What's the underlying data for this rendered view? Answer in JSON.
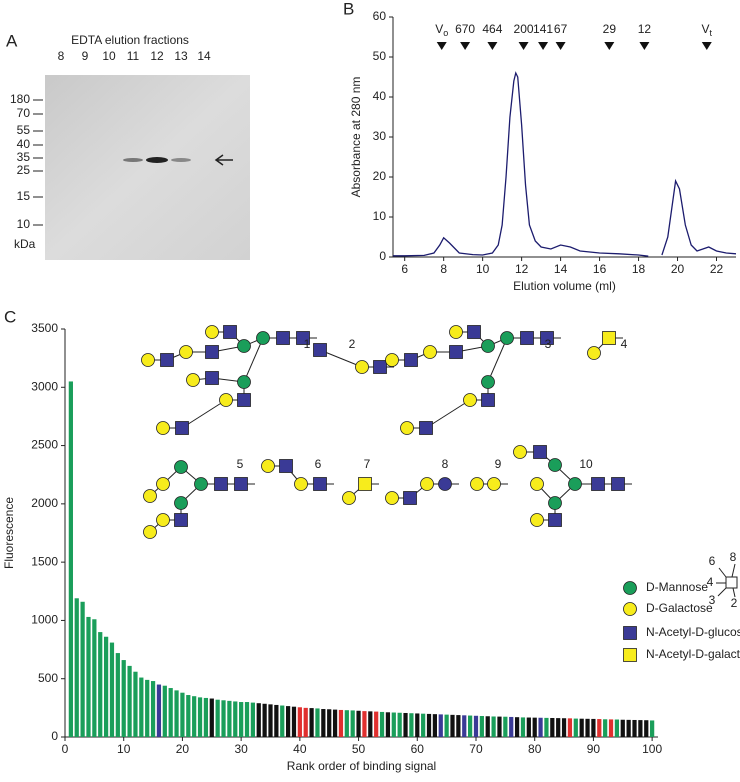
{
  "panel_labels": [
    "A",
    "B",
    "C"
  ],
  "gel": {
    "title": "EDTA elution fractions",
    "lanes": [
      "8",
      "9",
      "10",
      "11",
      "12",
      "13",
      "14"
    ],
    "markers": [
      180,
      70,
      55,
      40,
      35,
      25,
      15,
      10
    ],
    "unit": "kDa"
  },
  "chart_data": [
    {
      "type": "line",
      "x_label": "Elution volume (ml)",
      "y_label": "Absorbance at 280 nm",
      "xlim": [
        5.4,
        23
      ],
      "xticks": [
        6,
        8,
        10,
        12,
        14,
        16,
        18,
        20,
        22
      ],
      "ylim": [
        0,
        60
      ],
      "yticks": [
        0,
        10,
        20,
        30,
        40,
        50,
        60
      ],
      "markers": [
        {
          "label": "V",
          "subscript": "o",
          "x": 7.9
        },
        {
          "label": "670",
          "x": 9.1
        },
        {
          "label": "464",
          "x": 10.5
        },
        {
          "label": "200",
          "x": 12.1
        },
        {
          "label": "141",
          "x": 13.1
        },
        {
          "label": "67",
          "x": 14.0
        },
        {
          "label": "29",
          "x": 16.5
        },
        {
          "label": "12",
          "x": 18.3
        },
        {
          "label": "V",
          "subscript": "t",
          "x": 21.5
        }
      ],
      "series": [
        {
          "color": "#1c1c6e",
          "x": [
            5.4,
            6,
            7,
            7.5,
            7.8,
            8,
            8.3,
            8.8,
            9.5,
            10,
            10.5,
            10.8,
            11,
            11.2,
            11.4,
            11.6,
            11.7,
            11.8,
            12,
            12.2,
            12.4,
            12.7,
            13,
            13.5,
            14,
            14.5,
            15,
            16,
            17,
            18,
            18.5,
            18.8,
            19.2,
            19.5,
            19.7,
            19.9,
            20.1,
            20.4,
            20.7,
            21,
            21.3,
            21.6,
            22,
            22.5,
            23
          ],
          "values": [
            0.3,
            0.3,
            0.4,
            1,
            3,
            4.8,
            3.5,
            1,
            0.6,
            0.5,
            1,
            3,
            8,
            20,
            35,
            44,
            46,
            45,
            33,
            18,
            8,
            4,
            2.5,
            2,
            3,
            2.5,
            1.5,
            1,
            0.8,
            0.5,
            0.2,
            null,
            0.5,
            5,
            12,
            19,
            17,
            8,
            3,
            1.5,
            2,
            2.5,
            1.5,
            1,
            0.8
          ]
        }
      ]
    },
    {
      "type": "bar",
      "x_label": "Rank order of binding signal",
      "y_label": "Fluorescence",
      "xlim": [
        0,
        101
      ],
      "xticks": [
        0,
        10,
        20,
        30,
        40,
        50,
        60,
        70,
        80,
        90,
        100
      ],
      "ylim": [
        0,
        3500
      ],
      "yticks": [
        0,
        500,
        1000,
        1500,
        2000,
        2500,
        3000,
        3500
      ],
      "x": [
        1,
        2,
        3,
        4,
        5,
        6,
        7,
        8,
        9,
        10,
        11,
        12,
        13,
        14,
        15,
        16,
        17,
        18,
        19,
        20,
        21,
        22,
        23,
        24,
        25,
        26,
        27,
        28,
        29,
        30,
        31,
        32,
        33,
        34,
        35,
        36,
        37,
        38,
        39,
        40,
        41,
        42,
        43,
        44,
        45,
        46,
        47,
        48,
        49,
        50,
        51,
        52,
        53,
        54,
        55,
        56,
        57,
        58,
        59,
        60,
        61,
        62,
        63,
        64,
        65,
        66,
        67,
        68,
        69,
        70,
        71,
        72,
        73,
        74,
        75,
        76,
        77,
        78,
        79,
        80,
        81,
        82,
        83,
        84,
        85,
        86,
        87,
        88,
        89,
        90,
        91,
        92,
        93,
        94,
        95,
        96,
        97,
        98,
        99,
        100
      ],
      "values": [
        3050,
        1190,
        1160,
        1030,
        1010,
        900,
        860,
        810,
        720,
        660,
        610,
        560,
        510,
        490,
        480,
        450,
        440,
        420,
        400,
        380,
        360,
        350,
        340,
        335,
        330,
        320,
        315,
        310,
        305,
        300,
        300,
        295,
        290,
        285,
        280,
        275,
        270,
        265,
        260,
        255,
        250,
        248,
        245,
        240,
        238,
        235,
        232,
        230,
        228,
        225,
        222,
        220,
        218,
        215,
        212,
        210,
        208,
        206,
        204,
        202,
        200,
        198,
        196,
        194,
        192,
        190,
        188,
        186,
        184,
        182,
        180,
        178,
        176,
        175,
        174,
        172,
        170,
        168,
        167,
        166,
        165,
        164,
        163,
        162,
        161,
        160,
        158,
        157,
        156,
        155,
        154,
        152,
        151,
        150,
        148,
        147,
        146,
        145,
        144,
        142
      ],
      "colors": [
        "#1a9e5a",
        "#1a9e5a",
        "#1a9e5a",
        "#1a9e5a",
        "#1a9e5a",
        "#1a9e5a",
        "#1a9e5a",
        "#1a9e5a",
        "#1a9e5a",
        "#1a9e5a",
        "#1a9e5a",
        "#1a9e5a",
        "#1a9e5a",
        "#1a9e5a",
        "#1a9e5a",
        "#3a3a96",
        "#1a9e5a",
        "#1a9e5a",
        "#1a9e5a",
        "#1a9e5a",
        "#1a9e5a",
        "#1a9e5a",
        "#1a9e5a",
        "#1a9e5a",
        "#111111",
        "#1a9e5a",
        "#1a9e5a",
        "#1a9e5a",
        "#1a9e5a",
        "#1a9e5a",
        "#1a9e5a",
        "#1a9e5a",
        "#111111",
        "#111111",
        "#111111",
        "#111111",
        "#1a9e5a",
        "#111111",
        "#111111",
        "#e0302f",
        "#e0302f",
        "#111111",
        "#1a9e5a",
        "#111111",
        "#111111",
        "#111111",
        "#e0302f",
        "#1a9e5a",
        "#1a9e5a",
        "#111111",
        "#e0302f",
        "#111111",
        "#e0302f",
        "#1a9e5a",
        "#111111",
        "#1a9e5a",
        "#1a9e5a",
        "#111111",
        "#1a9e5a",
        "#111111",
        "#1a9e5a",
        "#111111",
        "#111111",
        "#3a3a96",
        "#1a9e5a",
        "#111111",
        "#111111",
        "#3a3a96",
        "#1a9e5a",
        "#3a3a96",
        "#1a9e5a",
        "#111111",
        "#1a9e5a",
        "#111111",
        "#1a9e5a",
        "#3a3a96",
        "#111111",
        "#1a9e5a",
        "#111111",
        "#111111",
        "#3a3a96",
        "#1a9e5a",
        "#111111",
        "#111111",
        "#111111",
        "#e0302f",
        "#1a9e5a",
        "#111111",
        "#111111",
        "#111111",
        "#e0302f",
        "#1a9e5a",
        "#e0302f",
        "#1a9e5a",
        "#111111",
        "#111111",
        "#111111",
        "#111111",
        "#111111",
        "#1a9e5a"
      ]
    }
  ],
  "glycan_labels": [
    "1",
    "2",
    "3",
    "4",
    "5",
    "6",
    "7",
    "8",
    "9",
    "10"
  ],
  "glycan_legend": [
    "D-Mannose",
    "D-Galactose",
    "N-Acetyl-D-glucosamine",
    "N-Acetyl-D-galactosamine"
  ],
  "linkage_key": [
    "6",
    "8",
    "4",
    "3",
    "2"
  ]
}
